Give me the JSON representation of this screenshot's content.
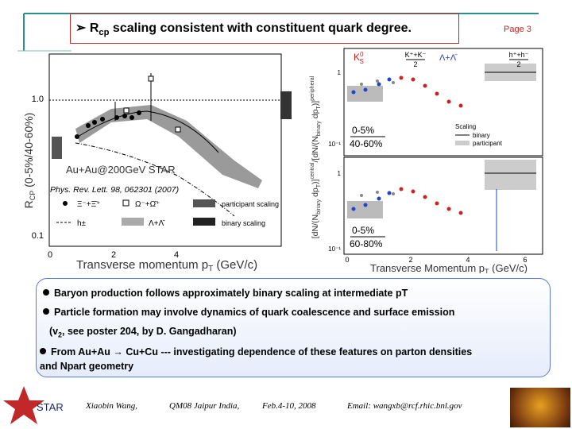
{
  "header": {
    "title": [
      "R",
      "cp",
      " scaling consistent with constituent quark degree."
    ],
    "page": "Page 3"
  },
  "left_plot": {
    "y_label": [
      "R",
      "CP",
      " (0-5%/40-60%)"
    ],
    "y_ticks": [
      "1.0",
      "0.1"
    ],
    "x_ticks": [
      "0",
      "2",
      "4"
    ],
    "x_label": [
      "Transverse momentum p",
      "T",
      " (GeV/c)"
    ],
    "system": "Au+Au@200GeV STAR",
    "reference": "Phys. Rev. Lett. 98, 062301 (2007)",
    "legend": [
      "Ξ⁻+Ξ̄⁺",
      "Ω⁻+Ω̄⁺",
      "participant scaling",
      "h±",
      "Λ+Λ̄",
      "binary scaling"
    ]
  },
  "right_plot": {
    "species": [
      [
        "K",
        "0",
        "S"
      ],
      [
        "K⁺+K⁻",
        "2"
      ],
      [
        "Λ+Λ̄"
      ],
      [
        "h⁺+h⁻",
        "2"
      ]
    ],
    "scaling": [
      "Scaling",
      "binary",
      "participant"
    ],
    "panels": [
      [
        "0-5%",
        "40-60%"
      ],
      [
        "0-5%",
        "60-80%"
      ]
    ],
    "y_ticks": [
      "1",
      "10⁻¹"
    ],
    "x_ticks": [
      "0",
      "2",
      "4",
      "6"
    ],
    "x_label": [
      "Transverse Momentum p",
      "T",
      " (GeV/c)"
    ],
    "y_label": [
      "[dN/(N",
      "binary",
      " dp",
      "T",
      ")]",
      "central",
      "/[dN/(N",
      "binary",
      " dp",
      "T",
      ")]",
      "peripheral"
    ]
  },
  "bullets": [
    "Baryon production follows approximately binary scaling at intermediate pT",
    "Particle formation may involve dynamics of quark coalescence and surface emission",
    [
      "(v",
      "2",
      ", see poster 204, by D. Gangadharan)"
    ],
    [
      "From Au+Au ",
      "→",
      " Cu+Cu --- investigating dependence of these features on parton densities",
      "and Npart geometry"
    ]
  ],
  "footer": {
    "logo": "STAR",
    "author": "Xiaobin Wang,",
    "conference": "QM08 Jaipur India,",
    "date": "Feb.4-10, 2008",
    "email": "Email: wangxb@rcf.rhic.bnl.gov"
  }
}
